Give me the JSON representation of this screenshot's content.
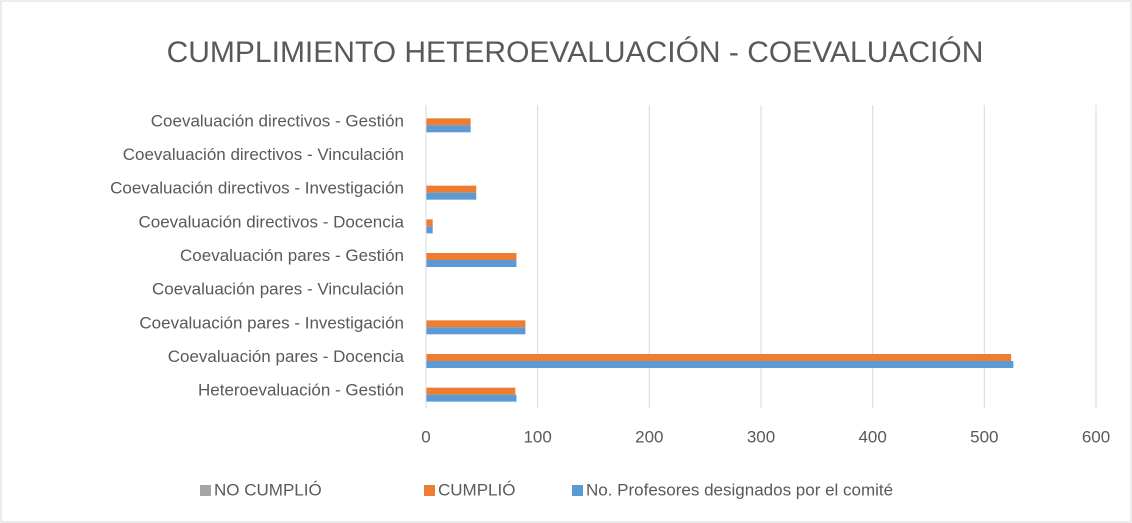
{
  "chart_data": {
    "type": "hbar",
    "title": "CUMPLIMIENTO HETEROEVALUACIÓN - COEVALUACIÓN",
    "categories": [
      "Coevaluación directivos - Gestión",
      "Coevaluación directivos - Vinculación",
      "Coevaluación directivos - Investigación",
      "Coevaluación directivos - Docencia",
      "Coevaluación pares - Gestión",
      "Coevaluación pares - Vinculación",
      "Coevaluación pares - Investigación",
      "Coevaluación pares - Docencia",
      "Heteroevaluación - Gestión"
    ],
    "series": [
      {
        "name": "NO CUMPLIÓ",
        "color": "#a5a5a5",
        "values": [
          0,
          0,
          0,
          0,
          0,
          0,
          0,
          0,
          0
        ]
      },
      {
        "name": "CUMPLIÓ",
        "color": "#ed7d31",
        "values": [
          40,
          0,
          45,
          6,
          81,
          0,
          89,
          524,
          80
        ]
      },
      {
        "name": "No. Profesores designados por el comité",
        "color": "#5b9bd5",
        "values": [
          40,
          0,
          45,
          6,
          81,
          0,
          89,
          526,
          81
        ]
      }
    ],
    "xlim": [
      0,
      600
    ],
    "xticks": [
      0,
      100,
      200,
      300,
      400,
      500,
      600
    ],
    "grid": true,
    "legend": "bottom"
  }
}
